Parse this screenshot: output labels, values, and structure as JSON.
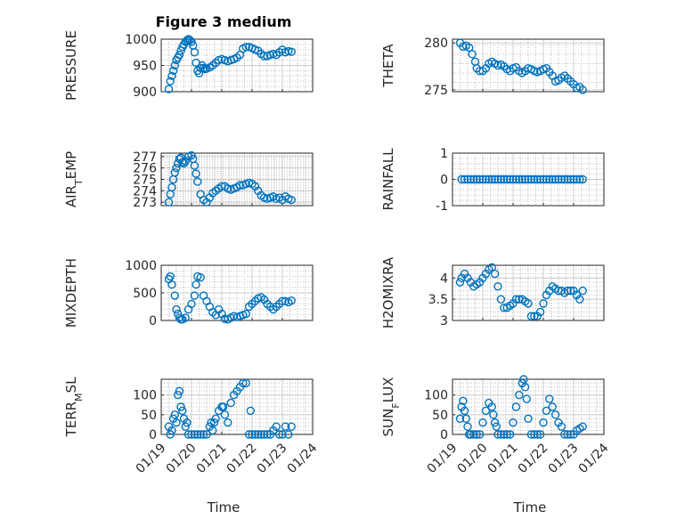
{
  "figure": {
    "title": "Figure 3 medium",
    "xlabel": "Time",
    "marker_color": "#0072BD",
    "x_ticks": [
      "01/19",
      "01/20",
      "01/21",
      "01/22",
      "01/23",
      "01/24"
    ]
  },
  "chart_data": [
    {
      "type": "scatter",
      "ylabel": "PRESSURE",
      "ylim": [
        900,
        1000
      ],
      "yticks": [
        900,
        950,
        1000
      ],
      "grid": true,
      "series": [
        {
          "x": [
            0.25,
            0.3,
            0.35,
            0.4,
            0.45,
            0.5,
            0.55,
            0.6,
            0.65,
            0.7,
            0.75,
            0.8,
            0.85,
            0.9,
            0.95,
            1.0,
            1.05,
            1.1,
            1.15,
            1.2,
            1.25,
            1.3,
            1.35,
            1.4,
            1.45,
            1.5,
            1.6,
            1.7,
            1.8,
            1.9,
            2.0,
            2.1,
            2.2,
            2.3,
            2.4,
            2.5,
            2.6,
            2.7,
            2.8,
            2.9,
            3.0,
            3.1,
            3.2,
            3.3,
            3.4,
            3.5,
            3.6,
            3.7,
            3.8,
            3.9,
            4.0,
            4.1,
            4.2,
            4.3
          ],
          "y": [
            905,
            920,
            930,
            940,
            950,
            960,
            965,
            970,
            978,
            985,
            990,
            995,
            998,
            1000,
            998,
            995,
            988,
            975,
            955,
            940,
            935,
            945,
            950,
            945,
            943,
            944,
            946,
            950,
            955,
            960,
            962,
            960,
            958,
            960,
            962,
            965,
            970,
            982,
            985,
            985,
            983,
            980,
            978,
            972,
            968,
            968,
            970,
            972,
            970,
            975,
            980,
            975,
            977,
            976
          ]
        }
      ]
    },
    {
      "type": "scatter",
      "ylabel": "THETA",
      "ylim": [
        274.8,
        280.4
      ],
      "yticks": [
        275,
        280
      ],
      "grid": true,
      "series": [
        {
          "x": [
            0.25,
            0.35,
            0.45,
            0.55,
            0.65,
            0.75,
            0.8,
            0.9,
            1.0,
            1.1,
            1.2,
            1.3,
            1.4,
            1.5,
            1.6,
            1.7,
            1.8,
            1.9,
            2.0,
            2.1,
            2.2,
            2.3,
            2.4,
            2.5,
            2.6,
            2.7,
            2.8,
            2.9,
            3.0,
            3.1,
            3.2,
            3.3,
            3.4,
            3.5,
            3.6,
            3.7,
            3.8,
            3.9,
            4.0,
            4.1,
            4.2,
            4.3
          ],
          "y": [
            280.0,
            279.6,
            279.7,
            279.5,
            278.8,
            278.0,
            277.3,
            277.0,
            277.0,
            277.3,
            277.8,
            278.0,
            277.8,
            277.6,
            277.7,
            277.5,
            277.2,
            277.0,
            277.3,
            277.4,
            277.0,
            276.8,
            277.0,
            277.3,
            277.2,
            277.0,
            276.9,
            277.0,
            277.2,
            277.3,
            276.9,
            276.5,
            275.9,
            276.0,
            276.3,
            276.5,
            276.2,
            275.9,
            275.6,
            275.2,
            275.3,
            275.0
          ]
        }
      ]
    },
    {
      "type": "scatter",
      "ylabel": "AIR_TEMP",
      "ylim": [
        272.7,
        277.3
      ],
      "yticks": [
        273,
        274,
        275,
        276,
        277
      ],
      "grid": true,
      "series": [
        {
          "x": [
            0.25,
            0.3,
            0.35,
            0.4,
            0.45,
            0.5,
            0.55,
            0.6,
            0.65,
            0.7,
            0.75,
            0.8,
            0.9,
            1.0,
            1.05,
            1.1,
            1.15,
            1.2,
            1.3,
            1.4,
            1.5,
            1.6,
            1.7,
            1.8,
            1.9,
            2.0,
            2.1,
            2.2,
            2.3,
            2.4,
            2.5,
            2.6,
            2.7,
            2.8,
            2.9,
            3.0,
            3.1,
            3.2,
            3.3,
            3.4,
            3.5,
            3.6,
            3.7,
            3.8,
            3.9,
            4.0,
            4.1,
            4.2,
            4.3
          ],
          "y": [
            273.0,
            273.7,
            274.3,
            275.0,
            275.6,
            276.0,
            276.4,
            276.8,
            276.9,
            276.5,
            276.4,
            276.6,
            277.0,
            277.1,
            276.8,
            276.2,
            275.5,
            274.8,
            273.7,
            273.2,
            273.0,
            273.4,
            273.8,
            274.0,
            274.2,
            274.4,
            274.4,
            274.2,
            274.1,
            274.2,
            274.3,
            274.5,
            274.5,
            274.6,
            274.7,
            274.6,
            274.4,
            274.0,
            273.6,
            273.4,
            273.3,
            273.4,
            273.5,
            273.3,
            273.4,
            273.2,
            273.5,
            273.3,
            273.2
          ]
        }
      ]
    },
    {
      "type": "scatter",
      "ylabel": "RAINFALL",
      "ylim": [
        -1,
        1
      ],
      "yticks": [
        -1,
        0,
        1
      ],
      "grid": true,
      "series": [
        {
          "x": [
            0.3,
            0.4,
            0.5,
            0.6,
            0.7,
            0.8,
            0.9,
            1.0,
            1.1,
            1.2,
            1.3,
            1.4,
            1.5,
            1.6,
            1.7,
            1.8,
            1.9,
            2.0,
            2.1,
            2.2,
            2.3,
            2.4,
            2.5,
            2.6,
            2.7,
            2.8,
            2.9,
            3.0,
            3.1,
            3.2,
            3.3,
            3.4,
            3.5,
            3.6,
            3.7,
            3.8,
            3.9,
            4.0,
            4.1,
            4.2,
            4.3
          ],
          "y": [
            0,
            0,
            0,
            0,
            0,
            0,
            0,
            0,
            0,
            0,
            0,
            0,
            0,
            0,
            0,
            0,
            0,
            0,
            0,
            0,
            0,
            0,
            0,
            0,
            0,
            0,
            0,
            0,
            0,
            0,
            0,
            0,
            0,
            0,
            0,
            0,
            0,
            0,
            0,
            0,
            0
          ]
        }
      ]
    },
    {
      "type": "scatter",
      "ylabel": "MIXDEPTH",
      "ylim": [
        0,
        1000
      ],
      "yticks": [
        0,
        500,
        1000
      ],
      "grid": true,
      "series": [
        {
          "x": [
            0.25,
            0.3,
            0.35,
            0.45,
            0.5,
            0.55,
            0.6,
            0.65,
            0.7,
            0.8,
            0.9,
            1.0,
            1.1,
            1.15,
            1.2,
            1.3,
            1.4,
            1.5,
            1.6,
            1.7,
            1.8,
            1.9,
            2.0,
            2.1,
            2.2,
            2.3,
            2.4,
            2.5,
            2.6,
            2.7,
            2.8,
            2.9,
            3.0,
            3.1,
            3.2,
            3.3,
            3.4,
            3.5,
            3.6,
            3.7,
            3.8,
            3.9,
            4.0,
            4.1,
            4.2,
            4.3
          ],
          "y": [
            750,
            800,
            650,
            450,
            200,
            120,
            50,
            20,
            20,
            50,
            200,
            300,
            450,
            650,
            800,
            780,
            450,
            350,
            250,
            150,
            100,
            200,
            120,
            30,
            20,
            50,
            80,
            60,
            80,
            100,
            120,
            250,
            300,
            350,
            400,
            420,
            380,
            300,
            250,
            200,
            250,
            300,
            350,
            350,
            330,
            360
          ]
        }
      ]
    },
    {
      "type": "scatter",
      "ylabel": "H2OMIXRA",
      "ylim": [
        3.0,
        4.3
      ],
      "yticks": [
        3,
        3.5,
        4
      ],
      "grid": true,
      "series": [
        {
          "x": [
            0.25,
            0.3,
            0.4,
            0.5,
            0.6,
            0.7,
            0.8,
            0.9,
            1.0,
            1.1,
            1.2,
            1.3,
            1.4,
            1.5,
            1.6,
            1.7,
            1.8,
            1.9,
            2.0,
            2.1,
            2.2,
            2.3,
            2.4,
            2.5,
            2.6,
            2.7,
            2.8,
            2.9,
            3.0,
            3.1,
            3.2,
            3.3,
            3.4,
            3.5,
            3.6,
            3.7,
            3.8,
            3.9,
            4.0,
            4.1,
            4.2,
            4.3
          ],
          "y": [
            3.9,
            4.0,
            4.1,
            4.0,
            3.9,
            3.8,
            3.85,
            3.9,
            4.0,
            4.1,
            4.2,
            4.25,
            4.1,
            3.8,
            3.5,
            3.3,
            3.3,
            3.35,
            3.4,
            3.5,
            3.5,
            3.5,
            3.45,
            3.4,
            3.1,
            3.1,
            3.1,
            3.2,
            3.4,
            3.6,
            3.7,
            3.8,
            3.75,
            3.7,
            3.7,
            3.65,
            3.7,
            3.7,
            3.7,
            3.6,
            3.5,
            3.7
          ]
        }
      ]
    },
    {
      "type": "scatter",
      "ylabel": "TERR_MSL",
      "ylim": [
        0,
        140
      ],
      "yticks": [
        0,
        50,
        100
      ],
      "grid": true,
      "series": [
        {
          "x": [
            0.25,
            0.3,
            0.35,
            0.4,
            0.45,
            0.5,
            0.55,
            0.6,
            0.65,
            0.7,
            0.75,
            0.8,
            0.85,
            0.9,
            1.0,
            1.1,
            1.2,
            1.3,
            1.4,
            1.5,
            1.6,
            1.65,
            1.7,
            1.75,
            1.8,
            1.9,
            2.0,
            2.05,
            2.1,
            2.2,
            2.3,
            2.4,
            2.5,
            2.6,
            2.7,
            2.8,
            2.9,
            2.95,
            3.0,
            3.1,
            3.2,
            3.3,
            3.4,
            3.5,
            3.6,
            3.7,
            3.8,
            3.9,
            4.0,
            4.1,
            4.2,
            4.3
          ],
          "y": [
            20,
            0,
            10,
            40,
            50,
            30,
            100,
            110,
            70,
            60,
            40,
            20,
            30,
            0,
            0,
            0,
            0,
            0,
            0,
            0,
            20,
            30,
            10,
            30,
            40,
            60,
            70,
            70,
            50,
            30,
            80,
            100,
            110,
            120,
            130,
            130,
            0,
            60,
            0,
            0,
            0,
            0,
            0,
            0,
            0,
            10,
            20,
            0,
            0,
            20,
            0,
            20
          ]
        }
      ]
    },
    {
      "type": "scatter",
      "ylabel": "SUN_FLUX",
      "ylim": [
        0,
        140
      ],
      "yticks": [
        0,
        50,
        100
      ],
      "grid": true,
      "series": [
        {
          "x": [
            0.25,
            0.3,
            0.35,
            0.4,
            0.45,
            0.5,
            0.55,
            0.6,
            0.7,
            0.8,
            0.9,
            1.0,
            1.1,
            1.2,
            1.3,
            1.35,
            1.4,
            1.45,
            1.5,
            1.6,
            1.7,
            1.8,
            1.9,
            2.0,
            2.1,
            2.2,
            2.3,
            2.35,
            2.4,
            2.45,
            2.5,
            2.6,
            2.7,
            2.8,
            2.9,
            3.0,
            3.1,
            3.2,
            3.3,
            3.4,
            3.5,
            3.6,
            3.7,
            3.8,
            3.9,
            4.0,
            4.1,
            4.2,
            4.3
          ],
          "y": [
            40,
            70,
            85,
            60,
            40,
            20,
            0,
            0,
            0,
            0,
            0,
            30,
            60,
            80,
            70,
            50,
            30,
            20,
            0,
            0,
            0,
            0,
            0,
            30,
            70,
            100,
            130,
            140,
            120,
            90,
            40,
            0,
            0,
            0,
            0,
            30,
            60,
            90,
            70,
            50,
            30,
            20,
            0,
            0,
            0,
            0,
            10,
            15,
            20
          ]
        }
      ]
    }
  ]
}
